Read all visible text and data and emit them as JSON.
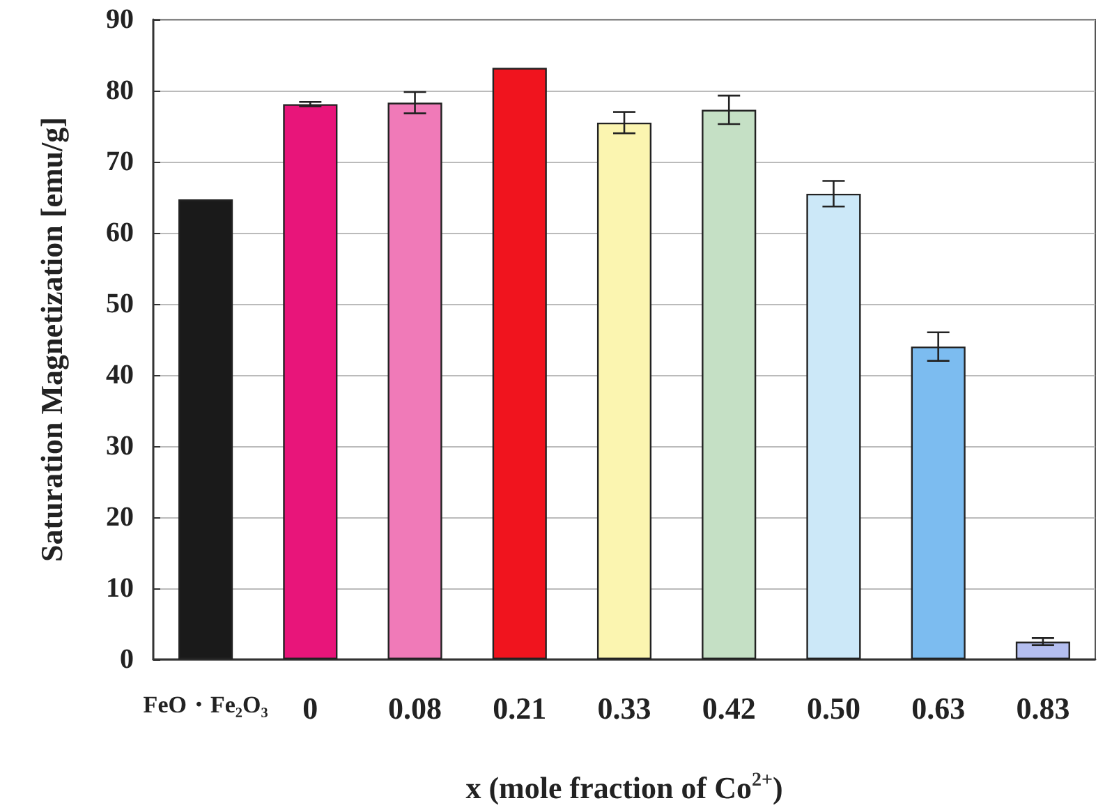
{
  "chart_data": {
    "type": "bar",
    "xlabel": "x (mole fraction of Co$^{2+}$)",
    "ylabel": "Saturation Magnetization [emu/g]",
    "categories": [
      "FeO・Fe₂O₃",
      "0",
      "0.08",
      "0.21",
      "0.33",
      "0.42",
      "0.50",
      "0.63",
      "0.83"
    ],
    "values": [
      64.7,
      78.1,
      78.3,
      83.2,
      75.5,
      77.3,
      65.5,
      44.0,
      2.5
    ],
    "errors": [
      null,
      0.3,
      1.5,
      null,
      1.5,
      2.0,
      1.8,
      2.0,
      0.5
    ],
    "colors": [
      "#1a1a1a",
      "#e8157a",
      "#f07ab8",
      "#f0141e",
      "#fbf5b0",
      "#c5e0c5",
      "#cce8f8",
      "#7cbcf0",
      "#b4bef0"
    ],
    "ylim": [
      0,
      90
    ],
    "yticks": [
      0,
      10,
      20,
      30,
      40,
      50,
      60,
      70,
      80,
      90
    ],
    "grid": "y"
  }
}
